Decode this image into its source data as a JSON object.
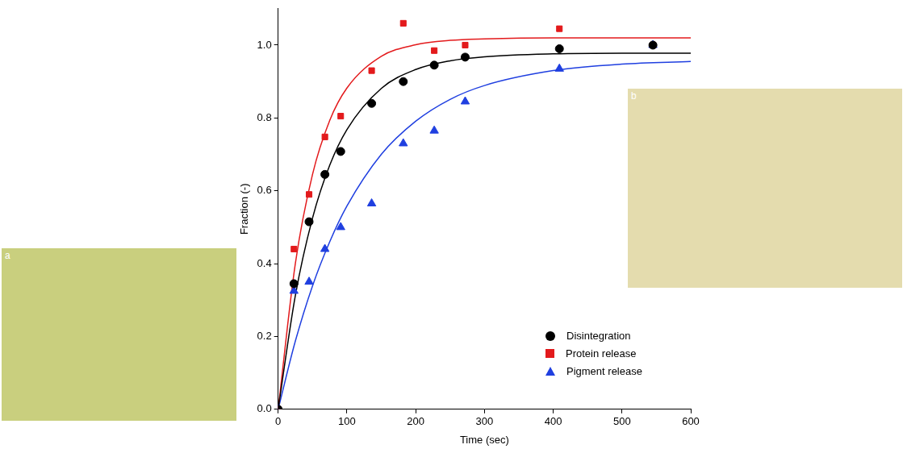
{
  "chart_data": {
    "type": "scatter",
    "x_label": "Time (sec)",
    "y_label": "Fraction (-)",
    "xlim": [
      0,
      600
    ],
    "xticks": [
      0,
      100,
      200,
      300,
      400,
      500,
      600
    ],
    "ylim": [
      0,
      1.1
    ],
    "yticks": [
      {
        "value": 0,
        "label": "0.0"
      },
      {
        "value": 0.2,
        "label": "0.2"
      },
      {
        "value": 0.4,
        "label": "0.4"
      },
      {
        "value": 0.6,
        "label": "0.6"
      },
      {
        "value": 0.8,
        "label": "0.8"
      },
      {
        "value": 1.0,
        "label": "1.0"
      }
    ],
    "grid": false,
    "legend": "lower right",
    "series": [
      {
        "name": "Disintegration",
        "color": "#000000",
        "marker": "circle",
        "x": [
          0,
          23,
          45,
          68,
          91,
          136,
          182,
          227,
          272,
          409,
          545
        ],
        "values": [
          0,
          0.345,
          0.515,
          0.645,
          0.708,
          0.84,
          0.9,
          0.945,
          0.967,
          0.99,
          1.0
        ]
      },
      {
        "name": "Protein release",
        "color": "#e31a1c",
        "marker": "square",
        "x": [
          0,
          23,
          45,
          68,
          91,
          136,
          182,
          227,
          272,
          409,
          545
        ],
        "values": [
          0,
          0.44,
          0.59,
          0.748,
          0.805,
          0.93,
          1.06,
          0.985,
          1.0,
          1.045,
          1.0
        ]
      },
      {
        "name": "Pigment release",
        "color": "#1f3fe0",
        "marker": "triangle",
        "x": [
          0,
          23,
          45,
          68,
          91,
          136,
          182,
          227,
          272,
          409,
          545
        ],
        "values": [
          0,
          0.325,
          0.35,
          0.44,
          0.5,
          0.565,
          0.73,
          0.765,
          0.845,
          0.935,
          1.0
        ]
      }
    ],
    "fits": [
      {
        "color": "#000000",
        "line_style": "solid",
        "x": [
          0,
          25,
          50,
          75,
          100,
          150,
          200,
          250,
          300,
          400,
          500,
          600
        ],
        "values": [
          0,
          0.312,
          0.525,
          0.67,
          0.768,
          0.881,
          0.933,
          0.957,
          0.968,
          0.976,
          0.978,
          0.978
        ]
      },
      {
        "color": "#e31a1c",
        "line_style": "solid",
        "x": [
          0,
          25,
          50,
          75,
          100,
          150,
          200,
          250,
          300,
          400,
          500,
          600
        ],
        "values": [
          0,
          0.4,
          0.645,
          0.793,
          0.882,
          0.969,
          1.001,
          1.013,
          1.017,
          1.02,
          1.02,
          1.02
        ]
      },
      {
        "color": "#1f3fe0",
        "line_style": "solid",
        "x": [
          0,
          25,
          50,
          75,
          100,
          150,
          200,
          250,
          300,
          400,
          500,
          600
        ],
        "values": [
          0,
          0.187,
          0.339,
          0.46,
          0.558,
          0.7,
          0.791,
          0.851,
          0.889,
          0.93,
          0.948,
          0.955
        ]
      }
    ]
  },
  "images": [
    {
      "label": "a"
    },
    {
      "label": "b"
    }
  ]
}
